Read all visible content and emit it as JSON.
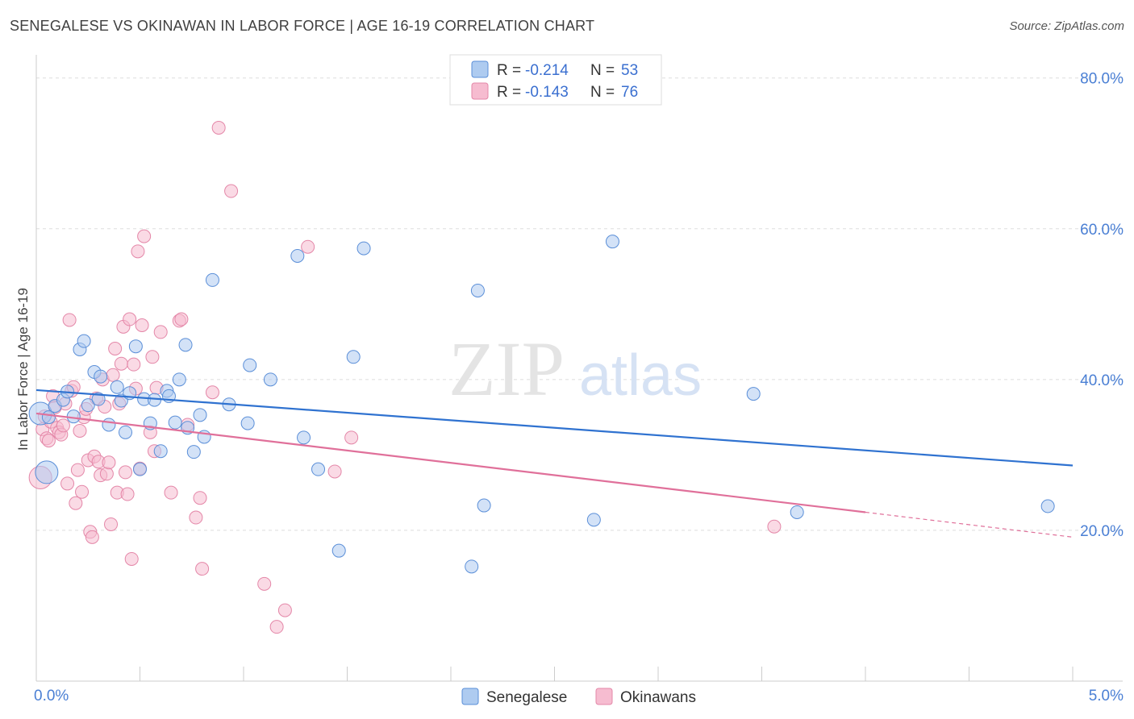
{
  "title": "SENEGALESE VS OKINAWAN IN LABOR FORCE | AGE 16-19 CORRELATION CHART",
  "source": "Source: ZipAtlas.com",
  "watermark_zip": "ZIP",
  "watermark_atlas": "atlas",
  "colors": {
    "senegalese_fill": "#aecbf0",
    "senegalese_stroke": "#5b8fd8",
    "senegalese_line": "#2f72d0",
    "okinawan_fill": "#f6bcd0",
    "okinawan_stroke": "#e487a8",
    "okinawan_line": "#e0709a",
    "grid": "#dddddd",
    "tick_text": "#4a7fd4"
  },
  "legend": {
    "r_label": "R =",
    "n_label": "N =",
    "senegalese": {
      "r": "-0.214",
      "n": "53"
    },
    "okinawan": {
      "r": "-0.143",
      "n": "76"
    }
  },
  "chart_data": {
    "type": "scatter",
    "title": "SENEGALESE VS OKINAWAN IN LABOR FORCE | AGE 16-19 CORRELATION CHART",
    "xlabel": "",
    "ylabel": "In Labor Force | Age 16-19",
    "xlim": [
      0,
      5.0
    ],
    "ylim": [
      0,
      82
    ],
    "x_tick_labels": [
      "0.0%",
      "5.0%"
    ],
    "y_ticks": [
      20,
      40,
      60,
      80
    ],
    "y_tick_labels": [
      "20.0%",
      "40.0%",
      "60.0%",
      "80.0%"
    ],
    "legend_position": "top-center",
    "series": [
      {
        "name": "Senegalese",
        "r": -0.214,
        "n": 53,
        "trend": {
          "x": [
            0.0,
            5.0
          ],
          "y": [
            38.6,
            28.6
          ]
        },
        "points": [
          {
            "x": 0.02,
            "y": 35.5,
            "big": true
          },
          {
            "x": 0.05,
            "y": 27.7,
            "big": true
          },
          {
            "x": 0.06,
            "y": 35.0
          },
          {
            "x": 0.09,
            "y": 36.5
          },
          {
            "x": 0.13,
            "y": 37.3
          },
          {
            "x": 0.15,
            "y": 38.4
          },
          {
            "x": 0.18,
            "y": 35.1
          },
          {
            "x": 0.21,
            "y": 44.0
          },
          {
            "x": 0.23,
            "y": 45.1
          },
          {
            "x": 0.25,
            "y": 36.6
          },
          {
            "x": 0.28,
            "y": 41.0
          },
          {
            "x": 0.3,
            "y": 37.4
          },
          {
            "x": 0.31,
            "y": 40.4
          },
          {
            "x": 0.35,
            "y": 34.0
          },
          {
            "x": 0.39,
            "y": 39.0
          },
          {
            "x": 0.41,
            "y": 37.2
          },
          {
            "x": 0.43,
            "y": 33.0
          },
          {
            "x": 0.45,
            "y": 38.2
          },
          {
            "x": 0.48,
            "y": 44.4
          },
          {
            "x": 0.5,
            "y": 28.1
          },
          {
            "x": 0.52,
            "y": 37.4
          },
          {
            "x": 0.55,
            "y": 34.2
          },
          {
            "x": 0.57,
            "y": 37.3
          },
          {
            "x": 0.6,
            "y": 30.5
          },
          {
            "x": 0.63,
            "y": 38.5
          },
          {
            "x": 0.64,
            "y": 37.8
          },
          {
            "x": 0.67,
            "y": 34.3
          },
          {
            "x": 0.69,
            "y": 40.0
          },
          {
            "x": 0.72,
            "y": 44.6
          },
          {
            "x": 0.73,
            "y": 33.6
          },
          {
            "x": 0.76,
            "y": 30.4
          },
          {
            "x": 0.79,
            "y": 35.3
          },
          {
            "x": 0.81,
            "y": 32.4
          },
          {
            "x": 0.85,
            "y": 53.2
          },
          {
            "x": 0.93,
            "y": 36.7
          },
          {
            "x": 1.02,
            "y": 34.2
          },
          {
            "x": 1.03,
            "y": 41.9
          },
          {
            "x": 1.13,
            "y": 40.0
          },
          {
            "x": 1.26,
            "y": 56.4
          },
          {
            "x": 1.29,
            "y": 32.3
          },
          {
            "x": 1.36,
            "y": 28.1
          },
          {
            "x": 1.46,
            "y": 17.3
          },
          {
            "x": 1.53,
            "y": 43.0
          },
          {
            "x": 1.58,
            "y": 57.4
          },
          {
            "x": 2.1,
            "y": 15.2
          },
          {
            "x": 2.13,
            "y": 51.8
          },
          {
            "x": 2.16,
            "y": 23.3
          },
          {
            "x": 2.69,
            "y": 21.4
          },
          {
            "x": 2.78,
            "y": 58.3
          },
          {
            "x": 3.46,
            "y": 38.1
          },
          {
            "x": 3.67,
            "y": 22.4
          },
          {
            "x": 4.88,
            "y": 23.2
          }
        ]
      },
      {
        "name": "Okinawans",
        "r": -0.143,
        "n": 76,
        "trend": {
          "x": [
            0.0,
            4.0
          ],
          "y": [
            35.5,
            22.4
          ]
        },
        "trend_dashed": {
          "x": [
            4.0,
            5.0
          ],
          "y": [
            22.4,
            19.1
          ]
        },
        "points": [
          {
            "x": 0.02,
            "y": 27.0,
            "big": true
          },
          {
            "x": 0.03,
            "y": 33.4
          },
          {
            "x": 0.04,
            "y": 35.1
          },
          {
            "x": 0.05,
            "y": 32.2
          },
          {
            "x": 0.06,
            "y": 31.9
          },
          {
            "x": 0.07,
            "y": 34.4
          },
          {
            "x": 0.08,
            "y": 37.8
          },
          {
            "x": 0.09,
            "y": 36.3
          },
          {
            "x": 0.1,
            "y": 33.6
          },
          {
            "x": 0.11,
            "y": 33.0
          },
          {
            "x": 0.12,
            "y": 32.7
          },
          {
            "x": 0.13,
            "y": 33.9
          },
          {
            "x": 0.14,
            "y": 36.8
          },
          {
            "x": 0.15,
            "y": 26.2
          },
          {
            "x": 0.16,
            "y": 47.9
          },
          {
            "x": 0.17,
            "y": 38.5
          },
          {
            "x": 0.18,
            "y": 39.0
          },
          {
            "x": 0.19,
            "y": 23.6
          },
          {
            "x": 0.2,
            "y": 28.0
          },
          {
            "x": 0.21,
            "y": 33.2
          },
          {
            "x": 0.22,
            "y": 25.1
          },
          {
            "x": 0.23,
            "y": 35.0
          },
          {
            "x": 0.24,
            "y": 36.1
          },
          {
            "x": 0.25,
            "y": 29.3
          },
          {
            "x": 0.26,
            "y": 19.8
          },
          {
            "x": 0.27,
            "y": 19.1
          },
          {
            "x": 0.28,
            "y": 29.8
          },
          {
            "x": 0.29,
            "y": 37.5
          },
          {
            "x": 0.3,
            "y": 29.1
          },
          {
            "x": 0.31,
            "y": 27.3
          },
          {
            "x": 0.32,
            "y": 40.0
          },
          {
            "x": 0.33,
            "y": 36.4
          },
          {
            "x": 0.34,
            "y": 27.5
          },
          {
            "x": 0.35,
            "y": 29.0
          },
          {
            "x": 0.36,
            "y": 20.8
          },
          {
            "x": 0.37,
            "y": 40.6
          },
          {
            "x": 0.38,
            "y": 44.1
          },
          {
            "x": 0.39,
            "y": 25.0
          },
          {
            "x": 0.4,
            "y": 36.8
          },
          {
            "x": 0.41,
            "y": 42.1
          },
          {
            "x": 0.42,
            "y": 47.0
          },
          {
            "x": 0.43,
            "y": 27.7
          },
          {
            "x": 0.44,
            "y": 24.8
          },
          {
            "x": 0.45,
            "y": 48.0
          },
          {
            "x": 0.46,
            "y": 16.2
          },
          {
            "x": 0.47,
            "y": 42.0
          },
          {
            "x": 0.48,
            "y": 38.8
          },
          {
            "x": 0.49,
            "y": 57.0
          },
          {
            "x": 0.5,
            "y": 28.2
          },
          {
            "x": 0.51,
            "y": 47.2
          },
          {
            "x": 0.52,
            "y": 59.0
          },
          {
            "x": 0.55,
            "y": 33.0
          },
          {
            "x": 0.56,
            "y": 43.0
          },
          {
            "x": 0.57,
            "y": 30.5
          },
          {
            "x": 0.58,
            "y": 38.9
          },
          {
            "x": 0.6,
            "y": 46.3
          },
          {
            "x": 0.65,
            "y": 25.0
          },
          {
            "x": 0.69,
            "y": 47.8
          },
          {
            "x": 0.7,
            "y": 48.0
          },
          {
            "x": 0.73,
            "y": 34.0
          },
          {
            "x": 0.77,
            "y": 21.7
          },
          {
            "x": 0.79,
            "y": 24.3
          },
          {
            "x": 0.8,
            "y": 14.9
          },
          {
            "x": 0.85,
            "y": 38.3
          },
          {
            "x": 0.88,
            "y": 73.4
          },
          {
            "x": 0.94,
            "y": 65.0
          },
          {
            "x": 1.1,
            "y": 12.9
          },
          {
            "x": 1.16,
            "y": 7.2
          },
          {
            "x": 1.2,
            "y": 9.4
          },
          {
            "x": 1.31,
            "y": 57.6
          },
          {
            "x": 1.44,
            "y": 27.8
          },
          {
            "x": 1.52,
            "y": 32.3
          },
          {
            "x": 3.56,
            "y": 20.5
          }
        ]
      }
    ]
  }
}
